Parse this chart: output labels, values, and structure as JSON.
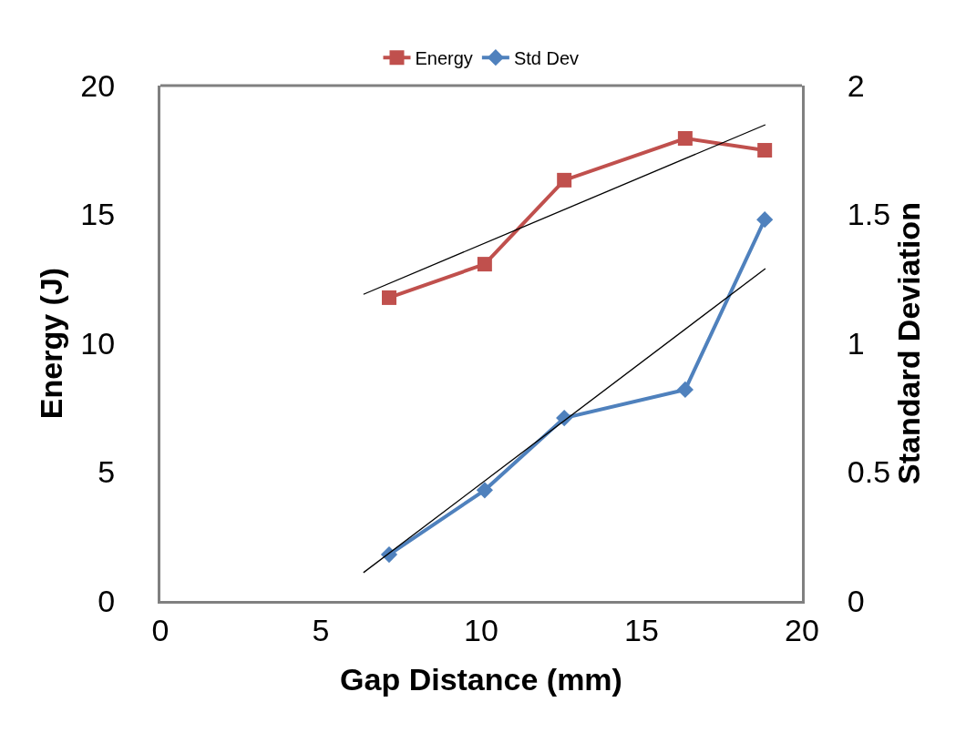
{
  "chart_data": {
    "type": "line",
    "xlabel": "Gap Distance (mm)",
    "ylabel": "Energy (J)",
    "y2label": "Standard Deviation",
    "xlim": [
      0,
      20
    ],
    "xticks": [
      0,
      5,
      10,
      15,
      20
    ],
    "ylim": [
      0,
      20
    ],
    "yticks": [
      0,
      5,
      10,
      15,
      20
    ],
    "y2lim": [
      0,
      2
    ],
    "y2ticks": [
      0,
      0.5,
      1,
      1.5,
      2
    ],
    "legend": "top",
    "series": [
      {
        "name": "Energy",
        "color": "#c0504d",
        "marker": "square",
        "x": [
          7.13,
          10.11,
          12.59,
          16.36,
          18.84
        ],
        "values": [
          11.77,
          13.07,
          16.33,
          17.95,
          17.49
        ]
      },
      {
        "name": "Std Dev",
        "color": "#4f81bd",
        "marker": "diamond",
        "axis": "y2",
        "x": [
          7.13,
          10.11,
          12.59,
          16.36,
          18.84
        ],
        "values": [
          0.18,
          0.43,
          0.71,
          0.82,
          1.48
        ]
      },
      {
        "color": "#000000",
        "marker": "none",
        "x": [
          6.33,
          18.86
        ],
        "values": [
          11.9,
          18.48
        ]
      },
      {
        "color": "#000000",
        "marker": "none",
        "axis": "y2",
        "x": [
          6.33,
          18.86
        ],
        "values": [
          0.11,
          1.29
        ]
      }
    ]
  }
}
